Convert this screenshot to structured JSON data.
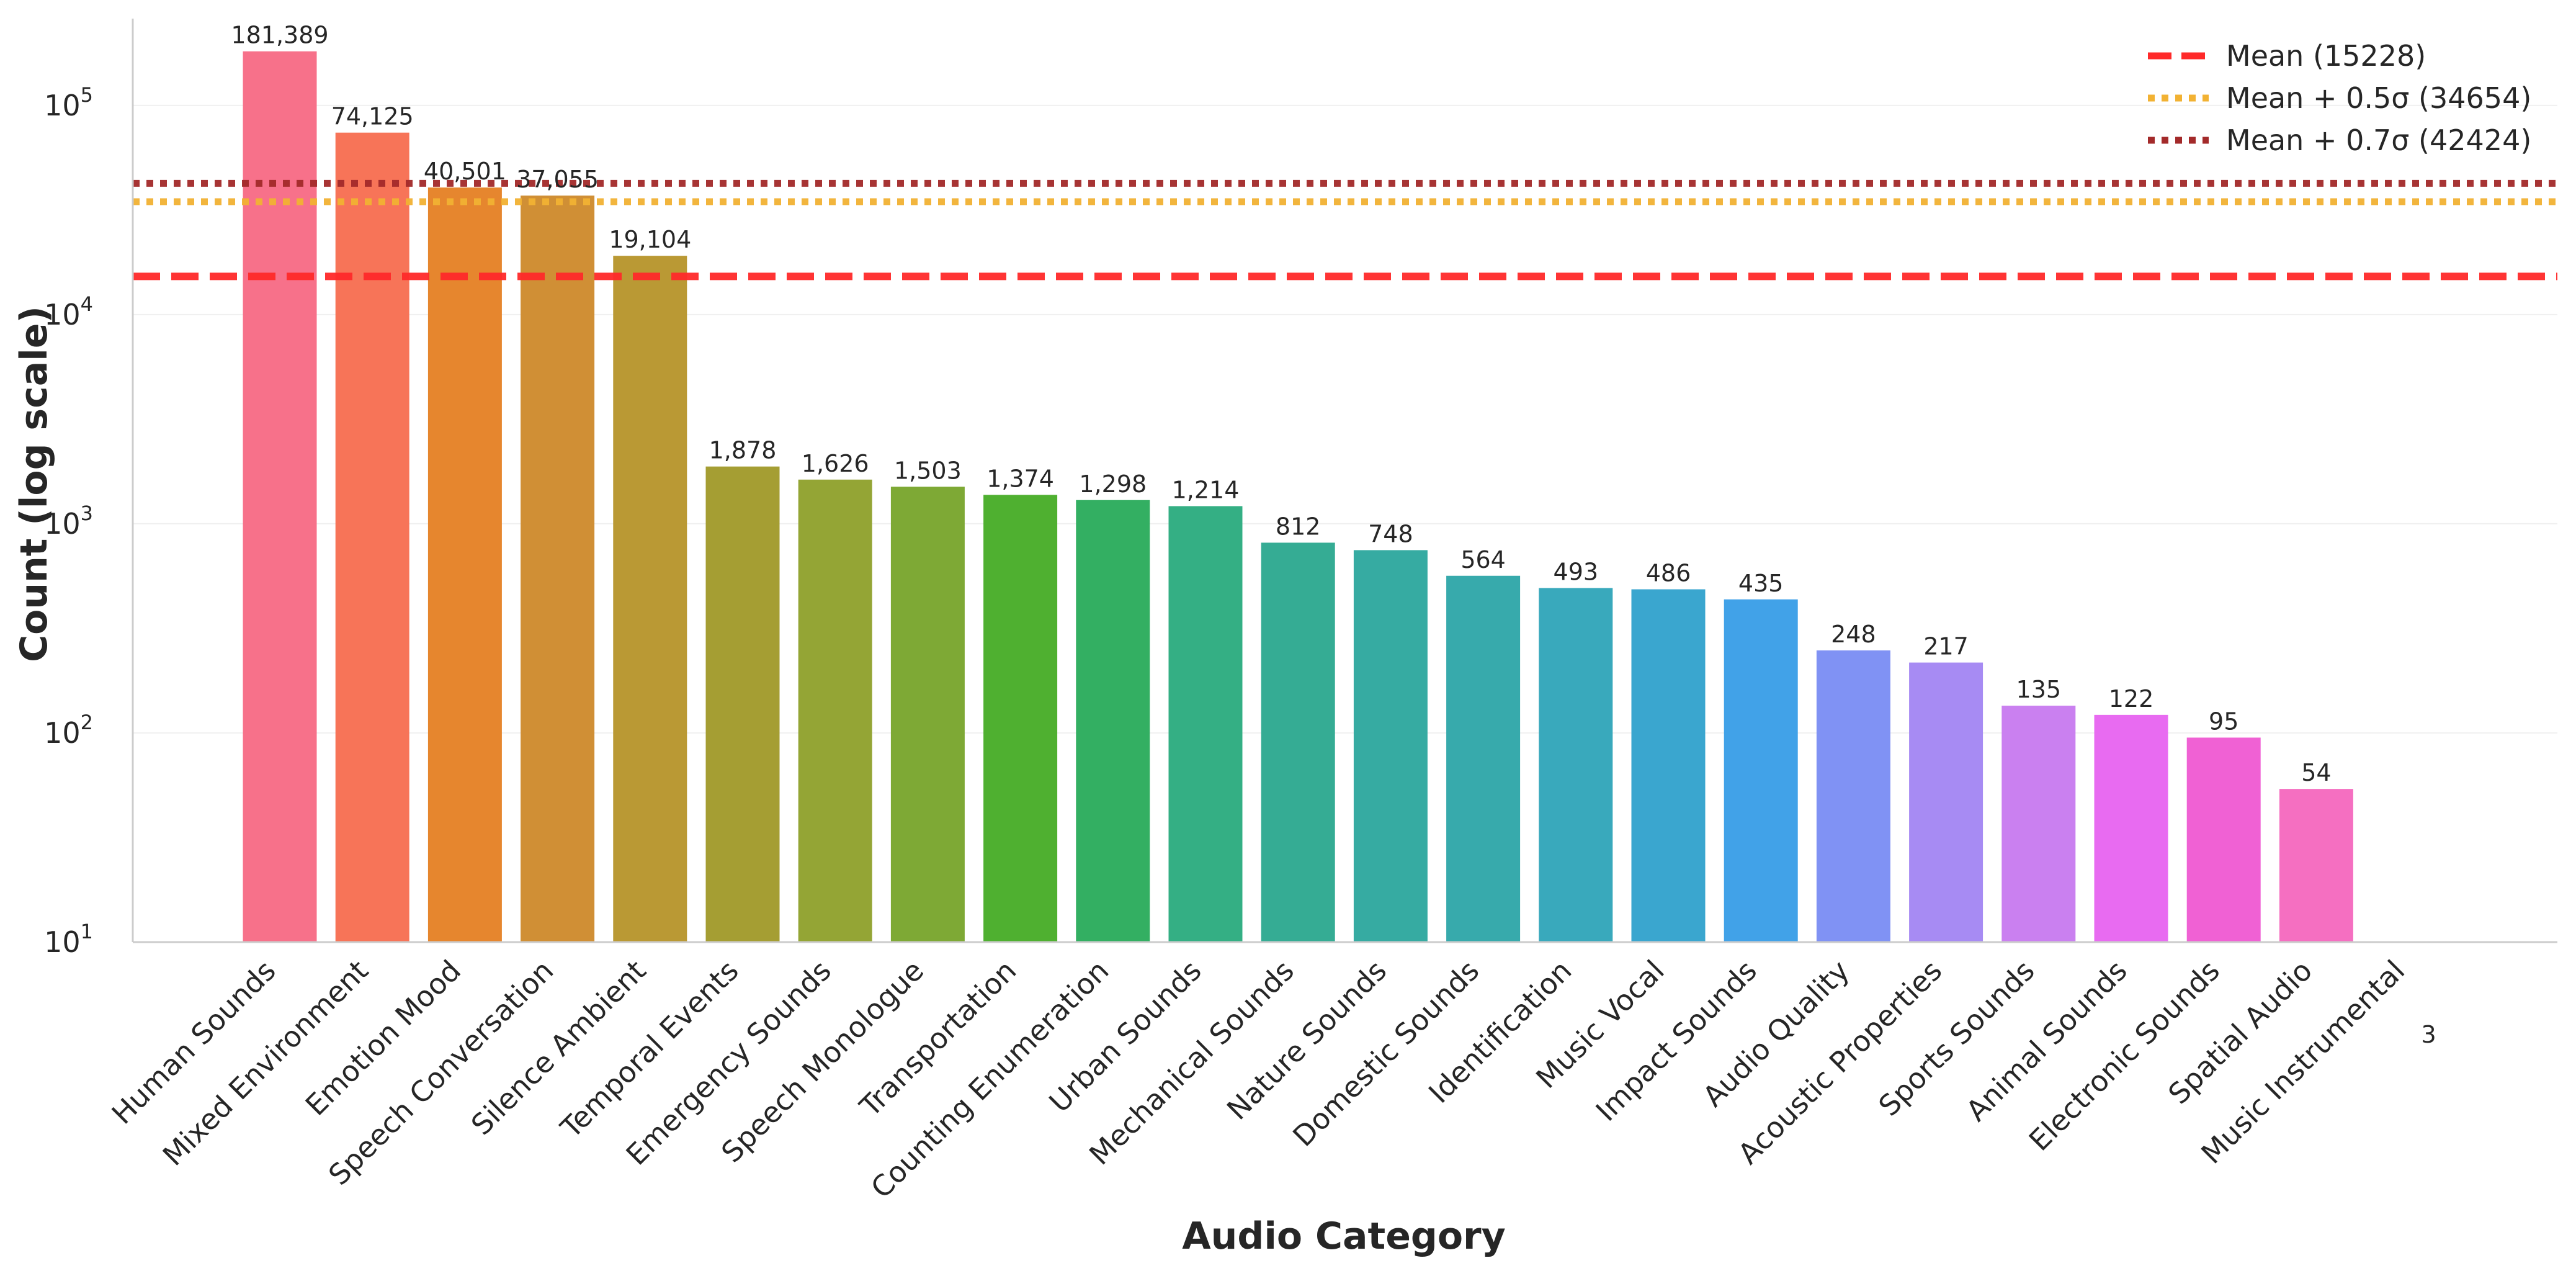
{
  "chart_data": {
    "type": "bar",
    "title": "",
    "xlabel": "Audio Category",
    "ylabel": "Count (log scale)",
    "yscale": "log",
    "ylim": [
      10,
      260000
    ],
    "grid": true,
    "legend_position": "top-right",
    "y_ticks": [
      {
        "value": 10,
        "base": "10",
        "exp": "1"
      },
      {
        "value": 100,
        "base": "10",
        "exp": "2"
      },
      {
        "value": 1000,
        "base": "10",
        "exp": "3"
      },
      {
        "value": 10000,
        "base": "10",
        "exp": "4"
      },
      {
        "value": 100000,
        "base": "10",
        "exp": "5"
      }
    ],
    "categories": [
      "Human Sounds",
      "Mixed Environment",
      "Emotion Mood",
      "Speech Conversation",
      "Silence Ambient",
      "Temporal Events",
      "Emergency Sounds",
      "Speech Monologue",
      "Transportation",
      "Counting Enumeration",
      "Urban Sounds",
      "Mechanical Sounds",
      "Nature Sounds",
      "Domestic Sounds",
      "Identification",
      "Music Vocal",
      "Impact Sounds",
      "Audio Quality",
      "Acoustic Properties",
      "Sports Sounds",
      "Animal Sounds",
      "Electronic Sounds",
      "Spatial Audio",
      "Music Instrumental"
    ],
    "values": [
      181389,
      74125,
      40501,
      37055,
      19104,
      1878,
      1626,
      1503,
      1374,
      1298,
      1214,
      812,
      748,
      564,
      493,
      486,
      435,
      248,
      217,
      135,
      122,
      95,
      54,
      3
    ],
    "value_labels": [
      "181,389",
      "74,125",
      "40,501",
      "37,055",
      "19,104",
      "1,878",
      "1,626",
      "1,503",
      "1,374",
      "1,298",
      "1,214",
      "812",
      "748",
      "564",
      "493",
      "486",
      "435",
      "248",
      "217",
      "135",
      "122",
      "95",
      "54",
      "3"
    ],
    "colors": [
      "#f7718a",
      "#f77458",
      "#e6862e",
      "#d08f35",
      "#ba9934",
      "#a59e33",
      "#94a535",
      "#7ea935",
      "#4fb030",
      "#33af62",
      "#34af84",
      "#35ac94",
      "#36aba2",
      "#37aaac",
      "#39a9bc",
      "#3aa6cf",
      "#41a2e8",
      "#8092f4",
      "#a78bf3",
      "#ca80f0",
      "#e86bf1",
      "#f061d4",
      "#f56fc1",
      "#f772a8"
    ],
    "reference_lines": [
      {
        "name": "Mean (15228)",
        "value": 15228,
        "color": "#ff2a2a",
        "style": "dashed"
      },
      {
        "name": "Mean + 0.5σ (34654)",
        "value": 34654,
        "color": "#f2b233",
        "style": "dotted"
      },
      {
        "name": "Mean + 0.7σ (42424)",
        "value": 42424,
        "color": "#a32a2a",
        "style": "dotted"
      }
    ]
  }
}
